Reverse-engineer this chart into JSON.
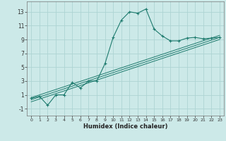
{
  "xlabel": "Humidex (Indice chaleur)",
  "ylabel": "",
  "background_color": "#cce9e8",
  "grid_color": "#aed4d3",
  "line_color": "#1e7b6e",
  "xlim": [
    -0.5,
    23.5
  ],
  "ylim": [
    -2.0,
    14.5
  ],
  "xticks": [
    0,
    1,
    2,
    3,
    4,
    5,
    6,
    7,
    8,
    9,
    10,
    11,
    12,
    13,
    14,
    15,
    16,
    17,
    18,
    19,
    20,
    21,
    22,
    23
  ],
  "yticks": [
    -1,
    1,
    3,
    5,
    7,
    9,
    11,
    13
  ],
  "main_x": [
    0,
    1,
    2,
    3,
    4,
    5,
    6,
    7,
    8,
    9,
    10,
    11,
    12,
    13,
    14,
    15,
    16,
    17,
    18,
    19,
    20,
    21,
    22,
    23
  ],
  "main_y": [
    0.5,
    0.8,
    -0.5,
    1.0,
    1.0,
    2.8,
    2.0,
    3.0,
    3.0,
    5.5,
    9.3,
    11.8,
    13.0,
    12.8,
    13.4,
    10.5,
    9.5,
    8.8,
    8.8,
    9.2,
    9.3,
    9.1,
    9.2,
    9.3
  ],
  "line2_x": [
    0,
    23
  ],
  "line2_y": [
    0.3,
    9.3
  ],
  "line3_x": [
    0,
    23
  ],
  "line3_y": [
    0.0,
    9.0
  ],
  "line4_x": [
    0,
    23
  ],
  "line4_y": [
    0.6,
    9.6
  ]
}
